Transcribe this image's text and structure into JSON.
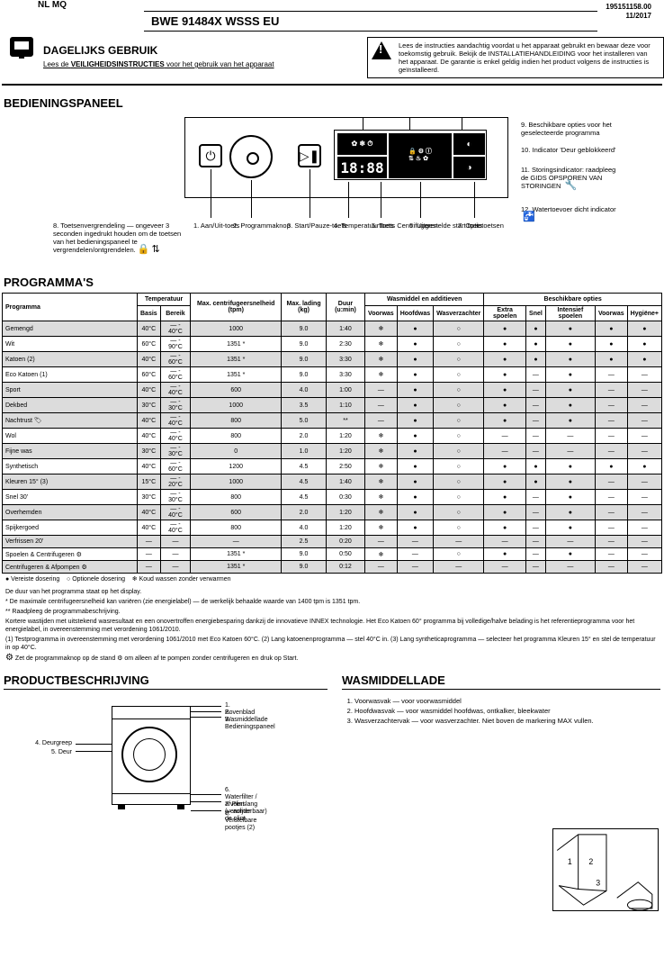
{
  "header": {
    "series": "NL MQ",
    "model": "BWE 91484X WSSS EU",
    "range_top": "195151158.00",
    "range_bottom": "11/2017"
  },
  "guide": {
    "title": "DAGELIJKS GEBRUIK",
    "subtitle_prefix": "Lees de",
    "subtitle_bold": "VEILIGHEIDSINSTRUCTIES",
    "subtitle_suffix": "voor het gebruik van het apparaat"
  },
  "warning": {
    "text": "Lees de instructies aandachtig voordat u het apparaat gebruikt en bewaar deze voor toekomstig gebruik. Bekijk de INSTALLATIEHANDLEIDING voor het installeren van het apparaat. De garantie is enkel geldig indien het product volgens de instructies is geïnstalleerd."
  },
  "control_panel": {
    "title": "BEDIENINGSPANEEL",
    "display_time": "18:88",
    "labels": {
      "1": "1. Aan/Uit-toets",
      "2": "2. Programmaknop",
      "3": "3. Start/Pauze-toets",
      "4": "4. Temperatuurtoets",
      "5": "5. Toets Centrifugeren",
      "6": "6. Uitgestelde start toets",
      "7": "7. Optietoetsen",
      "8": "8. Toetsenvergrendeling       — ongeveer 3 seconden ingedrukt houden om de toetsen van het bedieningspaneel te vergrendelen/ontgrendelen.",
      "9": "9. Beschikbare opties voor het geselecteerde programma",
      "10": "10. Indicator 'Deur geblokkeerd'",
      "11": "11. Storingsindicator: raadpleeg de GIDS OPSPOREN VAN STORINGEN",
      "12": "12. Watertoevoer dicht indicator"
    }
  },
  "programs_table": {
    "title": "PROGRAMMA'S",
    "headers": {
      "program": "Programma",
      "temp_group": "Temperatuur",
      "temp_basic": "Basis",
      "temp_range": "Bereik",
      "spin": "Max. centrifugeersnelheid (tpm)",
      "load": "Max. lading (kg)",
      "duration": "Duur (u:min)",
      "deterg_group": "Wasmiddel en additieven",
      "deterg_pre": "Voorwas",
      "deterg_main": "Hoofdwas",
      "deterg_soft": "Wasverzachter",
      "options": "Beschikbare opties",
      "opt1": "Extra spoelen",
      "opt2": "Snel",
      "opt3": "Intensief spoelen",
      "opt4": "Voorwas",
      "opt5": "Hygiëne+"
    },
    "rows": [
      {
        "shaded": true,
        "name": "Gemengd",
        "t_basic": "40°C",
        "t_range": "— - 40°C",
        "spin": "1000",
        "load": "9.0",
        "dur": "1:40",
        "pre": "❄",
        "main": "●",
        "soft": "○",
        "o1": "●",
        "o2": "●",
        "o3": "●",
        "o4": "●",
        "o5": "●"
      },
      {
        "shaded": false,
        "name": "Wit",
        "t_basic": "60°C",
        "t_range": "— - 90°C",
        "spin": "1351 *",
        "load": "9.0",
        "dur": "2:30",
        "pre": "❄",
        "main": "●",
        "soft": "○",
        "o1": "●",
        "o2": "●",
        "o3": "●",
        "o4": "●",
        "o5": "●"
      },
      {
        "shaded": true,
        "name": "Katoen (2)",
        "t_basic": "40°C",
        "t_range": "— - 60°C",
        "spin": "1351 *",
        "load": "9.0",
        "dur": "3:30",
        "pre": "❄",
        "main": "●",
        "soft": "○",
        "o1": "●",
        "o2": "●",
        "o3": "●",
        "o4": "●",
        "o5": "●"
      },
      {
        "shaded": false,
        "name": "Eco Katoen (1)",
        "t_basic": "60°C",
        "t_range": "— - 60°C",
        "spin": "1351 *",
        "load": "9.0",
        "dur": "3:30",
        "pre": "❄",
        "main": "●",
        "soft": "○",
        "o1": "●",
        "o2": "—",
        "o3": "●",
        "o4": "—",
        "o5": "—"
      },
      {
        "shaded": true,
        "name": "Sport",
        "t_basic": "40°C",
        "t_range": "— - 40°C",
        "spin": "600",
        "load": "4.0",
        "dur": "1:00",
        "pre": "—",
        "main": "●",
        "soft": "○",
        "o1": "●",
        "o2": "—",
        "o3": "●",
        "o4": "—",
        "o5": "—"
      },
      {
        "shaded": true,
        "name": "Dekbed",
        "t_basic": "30°C",
        "t_range": "— - 30°C",
        "spin": "1000",
        "load": "3.5",
        "dur": "1:10",
        "pre": "—",
        "main": "●",
        "soft": "○",
        "o1": "●",
        "o2": "—",
        "o3": "●",
        "o4": "—",
        "o5": "—"
      },
      {
        "shaded": true,
        "name": "Nachtrust  🏷",
        "t_basic": "40°C",
        "t_range": "— - 40°C",
        "spin": "800",
        "load": "5.0",
        "dur": "**",
        "pre": "—",
        "main": "●",
        "soft": "○",
        "o1": "●",
        "o2": "—",
        "o3": "●",
        "o4": "—",
        "o5": "—"
      },
      {
        "shaded": false,
        "name": "Wol",
        "t_basic": "40°C",
        "t_range": "— - 40°C",
        "spin": "800",
        "load": "2.0",
        "dur": "1:20",
        "pre": "❄",
        "main": "●",
        "soft": "○",
        "o1": "—",
        "o2": "—",
        "o3": "—",
        "o4": "—",
        "o5": "—"
      },
      {
        "shaded": true,
        "name": "Fijne was",
        "t_basic": "30°C",
        "t_range": "— - 30°C",
        "spin": "0",
        "load": "1.0",
        "dur": "1:20",
        "pre": "❄",
        "main": "●",
        "soft": "○",
        "o1": "—",
        "o2": "—",
        "o3": "—",
        "o4": "—",
        "o5": "—"
      },
      {
        "shaded": false,
        "name": "Synthetisch",
        "t_basic": "40°C",
        "t_range": "— - 60°C",
        "spin": "1200",
        "load": "4.5",
        "dur": "2:50",
        "pre": "❄",
        "main": "●",
        "soft": "○",
        "o1": "●",
        "o2": "●",
        "o3": "●",
        "o4": "●",
        "o5": "●"
      },
      {
        "shaded": true,
        "name": "Kleuren 15° (3)",
        "t_basic": "15°C",
        "t_range": "— - 20°C",
        "spin": "1000",
        "load": "4.5",
        "dur": "1:40",
        "pre": "❄",
        "main": "●",
        "soft": "○",
        "o1": "●",
        "o2": "●",
        "o3": "●",
        "o4": "—",
        "o5": "—"
      },
      {
        "shaded": false,
        "name": "Snel 30'",
        "t_basic": "30°C",
        "t_range": "— - 30°C",
        "spin": "800",
        "load": "4.5",
        "dur": "0:30",
        "pre": "❄",
        "main": "●",
        "soft": "○",
        "o1": "●",
        "o2": "—",
        "o3": "●",
        "o4": "—",
        "o5": "—"
      },
      {
        "shaded": true,
        "name": "Overhemden",
        "t_basic": "40°C",
        "t_range": "— - 40°C",
        "spin": "600",
        "load": "2.0",
        "dur": "1:20",
        "pre": "❄",
        "main": "●",
        "soft": "○",
        "o1": "●",
        "o2": "—",
        "o3": "●",
        "o4": "—",
        "o5": "—"
      },
      {
        "shaded": false,
        "name": "Spijkergoed",
        "t_basic": "40°C",
        "t_range": "— - 40°C",
        "spin": "800",
        "load": "4.0",
        "dur": "1:20",
        "pre": "❄",
        "main": "●",
        "soft": "○",
        "o1": "●",
        "o2": "—",
        "o3": "●",
        "o4": "—",
        "o5": "—"
      },
      {
        "shaded": true,
        "name": "Verfrissen  20'",
        "t_basic": "—",
        "t_range": "—",
        "spin": "—",
        "load": "2.5",
        "dur": "0:20",
        "pre": "—",
        "main": "—",
        "soft": "—",
        "o1": "—",
        "o2": "—",
        "o3": "—",
        "o4": "—",
        "o5": "—"
      },
      {
        "shaded": false,
        "name": "Spoelen & Centrifugeren  ⚙",
        "t_basic": "—",
        "t_range": "—",
        "spin": "1351 *",
        "load": "9.0",
        "dur": "0:50",
        "pre": "❄",
        "main": "—",
        "soft": "○",
        "o1": "●",
        "o2": "—",
        "o3": "●",
        "o4": "—",
        "o5": "—"
      },
      {
        "shaded": true,
        "name": "Centrifugeren & Afpompen  ⚙",
        "t_basic": "—",
        "t_range": "—",
        "spin": "1351 *",
        "load": "9.0",
        "dur": "0:12",
        "pre": "—",
        "main": "—",
        "soft": "—",
        "o1": "—",
        "o2": "—",
        "o3": "—",
        "o4": "—",
        "o5": "—"
      }
    ],
    "legend": {
      "required": "● Vereiste dosering",
      "optional": "○ Optionele dosering",
      "note_star": "❄ Koud wassen zonder verwarmen"
    }
  },
  "footnotes": {
    "f1": "De duur van het programma staat op het display.",
    "f2": "* De maximale centrifugeersnelheid kan variëren (zie energielabel) — de werkelijk behaalde waarde van 1400 tpm is 1351 tpm.",
    "f3": "** Raadpleeg de programmabeschrijving.",
    "f4": "Kortere wastijden met uitstekend wasresultaat en een onovertroffen energiebesparing dankzij de innovatieve INNEX technologie. Het Eco Katoen 60° programma bij volledige/halve belading is het referentieprogramma voor het energielabel, in overeenstemming met verordening 1061/2010.",
    "f5": "(1) Testprogramma in overeenstemming met verordening 1061/2010 met Eco Katoen 60°C.  (2) Lang katoenenprogramma — stel 40°C in.  (3) Lang syntheticaprogramma — selecteer het programma Kleuren 15° en stel de temperatuur in op 40°C.",
    "f6": "Zet de programmaknop op de stand ⚙ om alleen af te pompen zonder centrifugeren en druk op Start."
  },
  "product_desc": {
    "title": "PRODUCTBESCHRIJVING",
    "labels": {
      "1": "1. Bovenblad",
      "2": "2. Wasmiddellade",
      "3": "3. Bedieningspaneel",
      "4": "4. Deurgreep",
      "5": "5. Deur",
      "6": "6. Waterfilter / afvoerslang — achter de plint",
      "7": "7. Plint (verwijderbaar)",
      "8": "8. Verstelbare pootjes (2)"
    }
  },
  "drawer": {
    "title": "WASMIDDELLADE",
    "items": [
      "Voorwasvak — voor voorwasmiddel",
      "Hoofdwasvak — voor wasmiddel hoofdwas, ontkalker, bleekwater",
      "Wasverzachtervak — voor wasverzachter. Niet boven de markering MAX vullen."
    ]
  }
}
